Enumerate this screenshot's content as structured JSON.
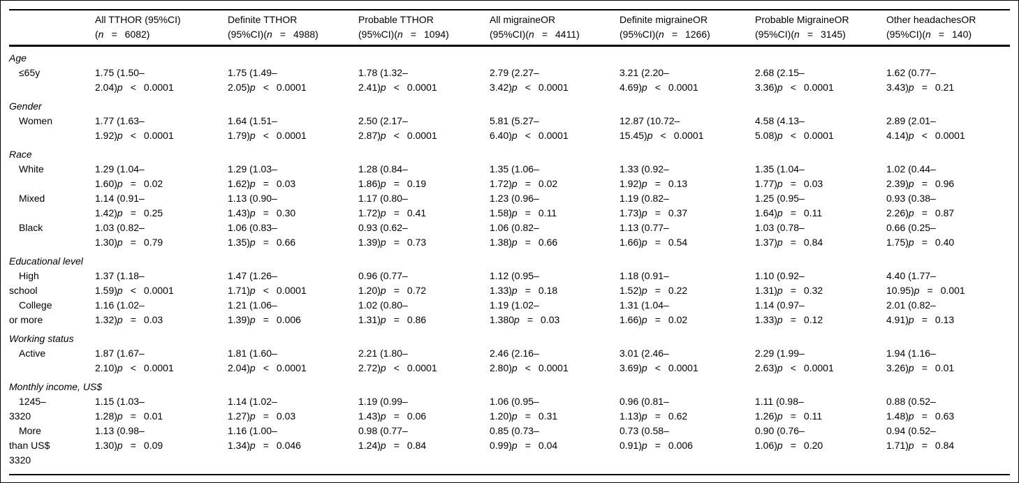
{
  "page": {
    "background": "#ffffff",
    "text_color": "#000000",
    "rule_color": "#000000"
  },
  "symbols": {
    "p": "p",
    "n": "n"
  },
  "table": {
    "columns": [
      {
        "line1": "All TTHOR (95%CI)",
        "l2_pre": "(",
        "op": "=",
        "l2_num": "6082)"
      },
      {
        "line1": "Definite TTHOR",
        "l2_pre": "(95%CI)(",
        "op": "=",
        "l2_num": "4988)"
      },
      {
        "line1": "Probable TTHOR",
        "l2_pre": "(95%CI)(",
        "op": "=",
        "l2_num": "1094)"
      },
      {
        "line1": "All migraineOR",
        "l2_pre": "(95%CI)(",
        "op": "=",
        "l2_num": "4411)"
      },
      {
        "line1": "Definite migraineOR",
        "l2_pre": "(95%CI)(",
        "op": "=",
        "l2_num": "1266)"
      },
      {
        "line1": "Probable MigraineOR",
        "l2_pre": "(95%CI)(",
        "op": "=",
        "l2_num": "3145)"
      },
      {
        "line1": "Other headachesOR",
        "l2_pre": "(95%CI)(",
        "op": "=",
        "l2_num": "140)"
      }
    ],
    "sections": [
      {
        "header": "Age",
        "rows": [
          {
            "label_lines": [
              "≤65y"
            ],
            "cells": [
              {
                "l1": "1.75 (1.50–",
                "l2": "2.04)",
                "op": "<",
                "p": "0.0001"
              },
              {
                "l1": "1.75 (1.49–",
                "l2": "2.05)",
                "op": "<",
                "p": "0.0001"
              },
              {
                "l1": "1.78 (1.32–",
                "l2": "2.41)",
                "op": "<",
                "p": "0.0001"
              },
              {
                "l1": "2.79 (2.27–",
                "l2": "3.42)",
                "op": "<",
                "p": "0.0001"
              },
              {
                "l1": "3.21 (2.20–",
                "l2": "4.69)",
                "op": "<",
                "p": "0.0001"
              },
              {
                "l1": "2.68 (2.15–",
                "l2": "3.36)",
                "op": "<",
                "p": "0.0001"
              },
              {
                "l1": "1.62 (0.77–",
                "l2": "3.43)",
                "op": "=",
                "p": "0.21"
              }
            ]
          }
        ]
      },
      {
        "header": "Gender",
        "rows": [
          {
            "label_lines": [
              "Women"
            ],
            "cells": [
              {
                "l1": "1.77 (1.63–",
                "l2": "1.92)",
                "op": "<",
                "p": "0.0001"
              },
              {
                "l1": "1.64 (1.51–",
                "l2": "1.79)",
                "op": "<",
                "p": "0.0001"
              },
              {
                "l1": "2.50 (2.17–",
                "l2": "2.87)",
                "op": "<",
                "p": "0.0001"
              },
              {
                "l1": "5.81 (5.27–",
                "l2": "6.40)",
                "op": "<",
                "p": "0.0001"
              },
              {
                "l1": "12.87 (10.72–",
                "l2": "15.45)",
                "op": "<",
                "p": "0.0001"
              },
              {
                "l1": "4.58 (4.13–",
                "l2": "5.08)",
                "op": "<",
                "p": "0.0001"
              },
              {
                "l1": "2.89 (2.01–",
                "l2": "4.14)",
                "op": "<",
                "p": "0.0001"
              }
            ]
          }
        ]
      },
      {
        "header": "Race",
        "rows": [
          {
            "label_lines": [
              "White"
            ],
            "cells": [
              {
                "l1": "1.29 (1.04–",
                "l2": "1.60)",
                "op": "=",
                "p": "0.02"
              },
              {
                "l1": "1.29 (1.03–",
                "l2": "1.62)",
                "op": "=",
                "p": "0.03"
              },
              {
                "l1": "1.28 (0.84–",
                "l2": "1.86)",
                "op": "=",
                "p": "0.19"
              },
              {
                "l1": "1.35 (1.06–",
                "l2": "1.72)",
                "op": "=",
                "p": "0.02"
              },
              {
                "l1": "1.33 (0.92–",
                "l2": "1.92)",
                "op": "=",
                "p": "0.13"
              },
              {
                "l1": "1.35 (1.04–",
                "l2": "1.77)",
                "op": "=",
                "p": "0.03"
              },
              {
                "l1": "1.02 (0.44–",
                "l2": "2.39)",
                "op": "=",
                "p": "0.96"
              }
            ]
          },
          {
            "label_lines": [
              "Mixed"
            ],
            "cells": [
              {
                "l1": "1.14 (0.91–",
                "l2": "1.42)",
                "op": "=",
                "p": "0.25"
              },
              {
                "l1": "1.13 (0.90–",
                "l2": "1.43)",
                "op": "=",
                "p": "0.30"
              },
              {
                "l1": "1.17 (0.80–",
                "l2": "1.72)",
                "op": "=",
                "p": "0.41"
              },
              {
                "l1": "1.23 (0.96–",
                "l2": "1.58)",
                "op": "=",
                "p": "0.11"
              },
              {
                "l1": "1.19 (0.82–",
                "l2": "1.73)",
                "op": "=",
                "p": "0.37"
              },
              {
                "l1": "1.25 (0.95–",
                "l2": "1.64)",
                "op": "=",
                "p": "0.11"
              },
              {
                "l1": "0.93 (0.38–",
                "l2": "2.26)",
                "op": "=",
                "p": "0.87"
              }
            ]
          },
          {
            "label_lines": [
              "Black"
            ],
            "cells": [
              {
                "l1": "1.03 (0.82–",
                "l2": "1.30)",
                "op": "=",
                "p": "0.79"
              },
              {
                "l1": "1.06 (0.83–",
                "l2": "1.35)",
                "op": "=",
                "p": "0.66"
              },
              {
                "l1": "0.93 (0.62–",
                "l2": "1.39)",
                "op": "=",
                "p": "0.73"
              },
              {
                "l1": "1.06 (0.82–",
                "l2": "1.38)",
                "op": "=",
                "p": "0.66"
              },
              {
                "l1": "1.13 (0.77–",
                "l2": "1.66)",
                "op": "=",
                "p": "0.54"
              },
              {
                "l1": "1.03 (0.78–",
                "l2": "1.37)",
                "op": "=",
                "p": "0.84"
              },
              {
                "l1": "0.66 (0.25–",
                "l2": "1.75)",
                "op": "=",
                "p": "0.40"
              }
            ]
          }
        ]
      },
      {
        "header": "Educational level",
        "rows": [
          {
            "label_lines": [
              "High",
              "school"
            ],
            "cells": [
              {
                "l1": "1.37 (1.18–",
                "l2": "1.59)",
                "op": "<",
                "p": "0.0001"
              },
              {
                "l1": "1.47 (1.26–",
                "l2": "1.71)",
                "op": "<",
                "p": "0.0001"
              },
              {
                "l1": "0.96 (0.77–",
                "l2": "1.20)",
                "op": "=",
                "p": "0.72"
              },
              {
                "l1": "1.12 (0.95–",
                "l2": "1.33)",
                "op": "=",
                "p": "0.18"
              },
              {
                "l1": "1.18 (0.91–",
                "l2": "1.52)",
                "op": "=",
                "p": "0.22"
              },
              {
                "l1": "1.10 (0.92–",
                "l2": "1.31)",
                "op": "=",
                "p": "0.32"
              },
              {
                "l1": "4.40 (1.77–",
                "l2": "10.95)",
                "op": "=",
                "p": "0.001"
              }
            ]
          },
          {
            "label_lines": [
              "College",
              "or more"
            ],
            "cells": [
              {
                "l1": "1.16 (1.02–",
                "l2": "1.32)",
                "op": "=",
                "p": "0.03"
              },
              {
                "l1": "1.21 (1.06–",
                "l2": "1.39)",
                "op": "=",
                "p": "0.006"
              },
              {
                "l1": "1.02 (0.80–",
                "l2": "1.31)",
                "op": "=",
                "p": "0.86"
              },
              {
                "l1": "1.19 (1.02–",
                "l2": "1.380",
                "op": "=",
                "p": "0.03"
              },
              {
                "l1": "1.31 (1.04–",
                "l2": "1.66)",
                "op": "=",
                "p": "0.02"
              },
              {
                "l1": "1.14 (0.97–",
                "l2": "1.33)",
                "op": "=",
                "p": "0.12"
              },
              {
                "l1": "2.01 (0.82–",
                "l2": "4.91)",
                "op": "=",
                "p": "0.13"
              }
            ]
          }
        ]
      },
      {
        "header": "Working status",
        "rows": [
          {
            "label_lines": [
              "Active"
            ],
            "cells": [
              {
                "l1": "1.87 (1.67–",
                "l2": "2.10)",
                "op": "<",
                "p": "0.0001"
              },
              {
                "l1": "1.81 (1.60–",
                "l2": "2.04)",
                "op": "<",
                "p": "0.0001"
              },
              {
                "l1": "2.21 (1.80–",
                "l2": "2.72)",
                "op": "<",
                "p": "0.0001"
              },
              {
                "l1": "2.46 (2.16–",
                "l2": "2.80)",
                "op": "<",
                "p": "0.0001"
              },
              {
                "l1": "3.01 (2.46–",
                "l2": "3.69)",
                "op": "<",
                "p": "0.0001"
              },
              {
                "l1": "2.29 (1.99–",
                "l2": "2.63)",
                "op": "<",
                "p": "0.0001"
              },
              {
                "l1": "1.94 (1.16–",
                "l2": "3.26)",
                "op": "=",
                "p": "0.01"
              }
            ]
          }
        ]
      },
      {
        "header": "Monthly income, US$",
        "rows": [
          {
            "label_lines": [
              "1245–",
              "3320"
            ],
            "cells": [
              {
                "l1": "1.15 (1.03–",
                "l2": "1.28)",
                "op": "=",
                "p": "0.01"
              },
              {
                "l1": "1.14 (1.02–",
                "l2": "1.27)",
                "op": "=",
                "p": "0.03"
              },
              {
                "l1": "1.19 (0.99–",
                "l2": "1.43)",
                "op": "=",
                "p": "0.06"
              },
              {
                "l1": "1.06 (0.95–",
                "l2": "1.20)",
                "op": "=",
                "p": "0.31"
              },
              {
                "l1": "0.96 (0.81–",
                "l2": "1.13)",
                "op": "=",
                "p": "0.62"
              },
              {
                "l1": "1.11 (0.98–",
                "l2": "1.26)",
                "op": "=",
                "p": "0.11"
              },
              {
                "l1": "0.88 (0.52–",
                "l2": "1.48)",
                "op": "=",
                "p": "0.63"
              }
            ]
          },
          {
            "label_lines": [
              "More",
              "than US$",
              "3320"
            ],
            "cells": [
              {
                "l1": "1.13 (0.98–",
                "l2": "1.30)",
                "op": "=",
                "p": "0.09"
              },
              {
                "l1": "1.16 (1.00–",
                "l2": "1.34)",
                "op": "=",
                "p": "0.046"
              },
              {
                "l1": "0.98 (0.77–",
                "l2": "1.24)",
                "op": "=",
                "p": "0.84"
              },
              {
                "l1": "0.85 (0.73–",
                "l2": "0.99)",
                "op": "=",
                "p": "0.04"
              },
              {
                "l1": "0.73 (0.58–",
                "l2": "0.91)",
                "op": "=",
                "p": "0.006"
              },
              {
                "l1": "0.90 (0.76–",
                "l2": "1.06)",
                "op": "=",
                "p": "0.20"
              },
              {
                "l1": "0.94 (0.52–",
                "l2": "1.71)",
                "op": "=",
                "p": "0.84"
              }
            ]
          }
        ]
      }
    ]
  }
}
